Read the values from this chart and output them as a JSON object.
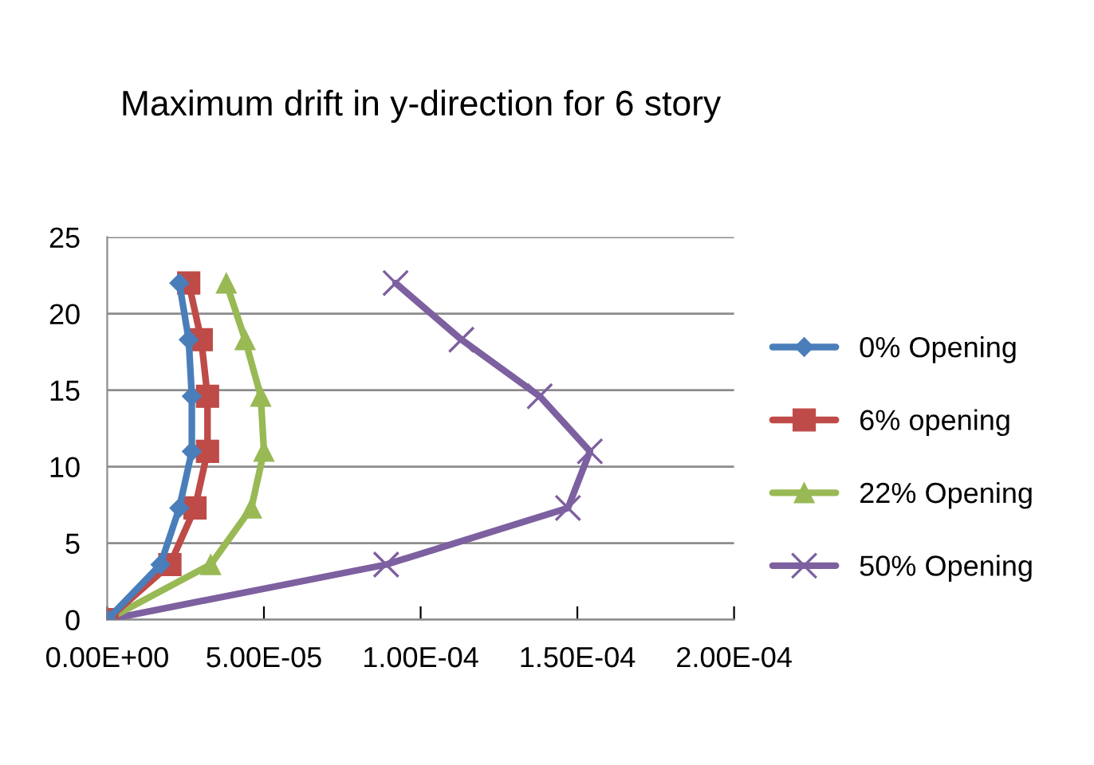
{
  "chart_data": {
    "type": "line",
    "title": "Maximum drift in y-direction for 6 story",
    "series": [
      {
        "name": "0% Opening",
        "color": "#4a7ebb",
        "marker": "diamond",
        "x": [
          0,
          1.7e-05,
          2.3e-05,
          2.7e-05,
          2.7e-05,
          2.6e-05,
          2.3e-05
        ],
        "values": [
          0,
          3.6,
          7.3,
          11,
          14.6,
          18.3,
          22
        ]
      },
      {
        "name": "6% opening",
        "color": "#be4b48",
        "marker": "square",
        "x": [
          0,
          2e-05,
          2.8e-05,
          3.2e-05,
          3.2e-05,
          3e-05,
          2.6e-05
        ],
        "values": [
          0,
          3.6,
          7.3,
          11,
          14.6,
          18.3,
          22
        ]
      },
      {
        "name": "22% Opening",
        "color": "#98b954",
        "marker": "triangle",
        "x": [
          0,
          3.3e-05,
          4.6e-05,
          5e-05,
          4.9e-05,
          4.4e-05,
          3.8e-05
        ],
        "values": [
          0,
          3.6,
          7.3,
          11,
          14.6,
          18.3,
          22
        ]
      },
      {
        "name": "50% Opening",
        "color": "#7d60a0",
        "marker": "cross",
        "x": [
          0,
          8.9e-05,
          0.000147,
          0.000154,
          0.000138,
          0.000113,
          9.2e-05
        ],
        "values": [
          0,
          3.6,
          7.3,
          11,
          14.6,
          18.3,
          22
        ]
      }
    ],
    "xlim": [
      0,
      0.0002
    ],
    "xticks": [
      {
        "value": 0,
        "label": "0.00E+00"
      },
      {
        "value": 5e-05,
        "label": "5.00E-05"
      },
      {
        "value": 0.0001,
        "label": "1.00E-04"
      },
      {
        "value": 0.00015,
        "label": "1.50E-04"
      },
      {
        "value": 0.0002,
        "label": "2.00E-04"
      }
    ],
    "ylim": [
      0,
      25
    ],
    "yticks": [
      0,
      5,
      10,
      15,
      20,
      25
    ],
    "grid": "y",
    "legend": "right"
  }
}
